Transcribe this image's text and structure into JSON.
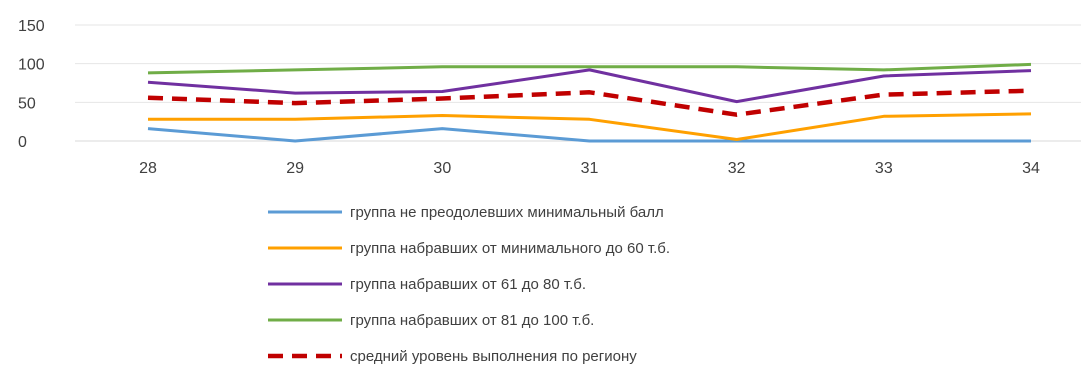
{
  "chart_data": {
    "type": "line",
    "title": "",
    "xlabel": "",
    "ylabel": "",
    "categories": [
      "28",
      "29",
      "30",
      "31",
      "32",
      "33",
      "34"
    ],
    "ylim": [
      0,
      150
    ],
    "yticks": [
      0,
      50,
      100,
      150
    ],
    "grid": "horizontal",
    "legend_position": "bottom",
    "series": [
      {
        "name": "группа не преодолевших минимальный балл",
        "color": "#5B9BD5",
        "dash": "solid",
        "values": [
          16,
          0,
          16,
          0,
          0,
          0,
          0
        ]
      },
      {
        "name": "группа набравших от минимального до 60 т.б.",
        "color": "#FFA000",
        "dash": "solid",
        "values": [
          28,
          28,
          33,
          28,
          2,
          32,
          35
        ]
      },
      {
        "name": "группа набравших от 61 до 80 т.б.",
        "color": "#7030A0",
        "dash": "solid",
        "values": [
          76,
          62,
          64,
          92,
          51,
          84,
          91
        ]
      },
      {
        "name": "группа набравших от 81 до 100 т.б.",
        "color": "#70AD47",
        "dash": "solid",
        "values": [
          88,
          92,
          96,
          96,
          96,
          92,
          99
        ]
      },
      {
        "name": "средний уровень выполнения по региону",
        "color": "#C00000",
        "dash": "dashed",
        "values": [
          56,
          49,
          55,
          63,
          34,
          60,
          65
        ]
      }
    ]
  }
}
